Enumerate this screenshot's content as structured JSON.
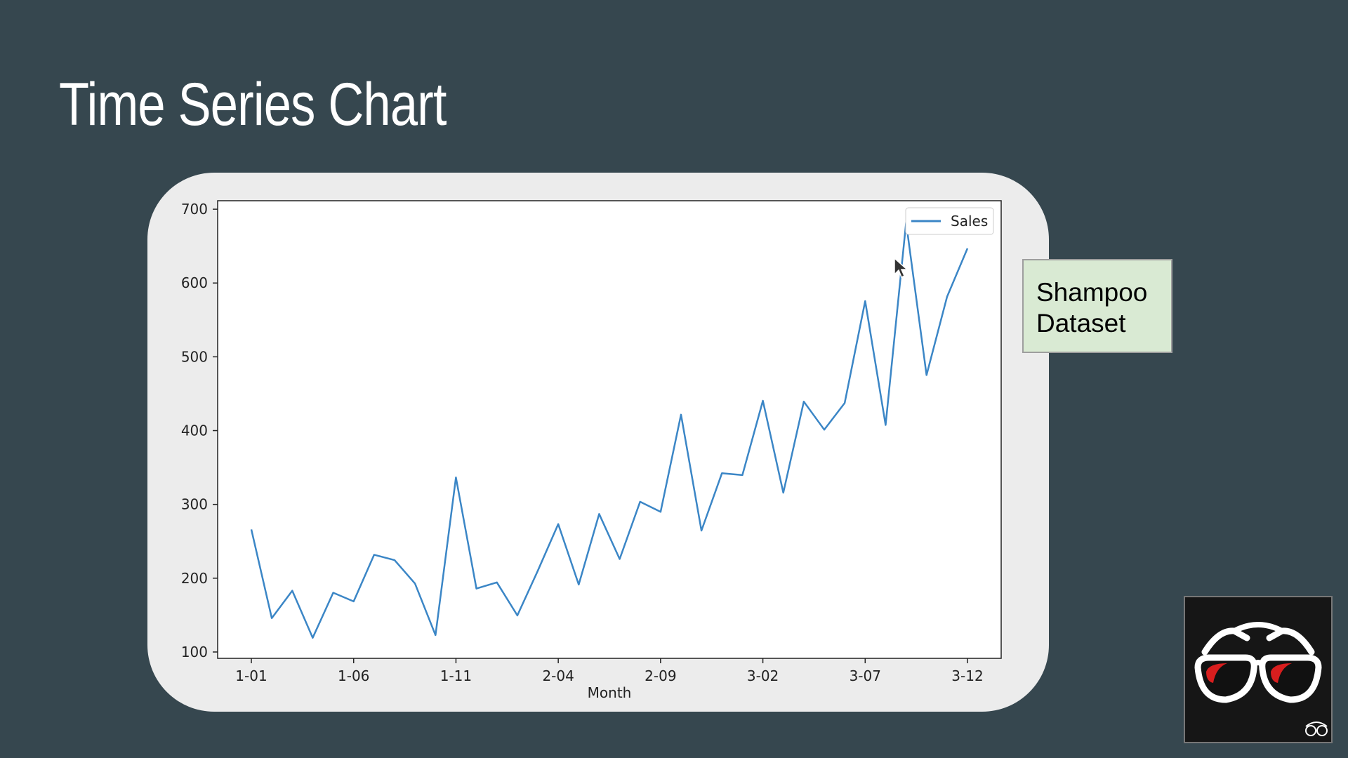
{
  "slide": {
    "title": "Time Series Chart",
    "note_lines": [
      "Shampoo",
      "Dataset"
    ]
  },
  "colors": {
    "background": "#36474f",
    "card": "#ececec",
    "line": "#3b86c6",
    "note_fill": "#d9ead3",
    "logo_lens": "#d81e1e"
  },
  "logo": {
    "icon": "glasses-logo-icon",
    "corner_icon": "small-glasses-icon"
  },
  "chart_data": {
    "type": "line",
    "title": "",
    "xlabel": "Month",
    "ylabel": "",
    "x": [
      "1-01",
      "1-02",
      "1-03",
      "1-04",
      "1-05",
      "1-06",
      "1-07",
      "1-08",
      "1-09",
      "1-10",
      "1-11",
      "1-12",
      "2-01",
      "2-02",
      "2-03",
      "2-04",
      "2-05",
      "2-06",
      "2-07",
      "2-08",
      "2-09",
      "2-10",
      "2-11",
      "2-12",
      "3-01",
      "3-02",
      "3-03",
      "3-04",
      "3-05",
      "3-06",
      "3-07",
      "3-08",
      "3-09",
      "3-10",
      "3-11",
      "3-12"
    ],
    "xticks": [
      "1-01",
      "1-06",
      "1-11",
      "2-04",
      "2-09",
      "3-02",
      "3-07",
      "3-12"
    ],
    "yticks": [
      100,
      200,
      300,
      400,
      500,
      600,
      700
    ],
    "ylim": [
      91.4,
      711.5
    ],
    "legend": "top-right",
    "grid": false,
    "series": [
      {
        "name": "Sales",
        "values": [
          266.0,
          145.9,
          183.1,
          119.3,
          180.3,
          168.5,
          231.8,
          224.5,
          192.8,
          122.9,
          336.5,
          185.9,
          194.3,
          149.5,
          210.1,
          273.3,
          191.4,
          287.0,
          226.0,
          303.6,
          289.9,
          421.6,
          264.5,
          342.3,
          339.7,
          440.4,
          315.9,
          439.3,
          401.3,
          437.4,
          575.5,
          407.6,
          682.0,
          475.3,
          581.3,
          646.9
        ]
      }
    ]
  }
}
